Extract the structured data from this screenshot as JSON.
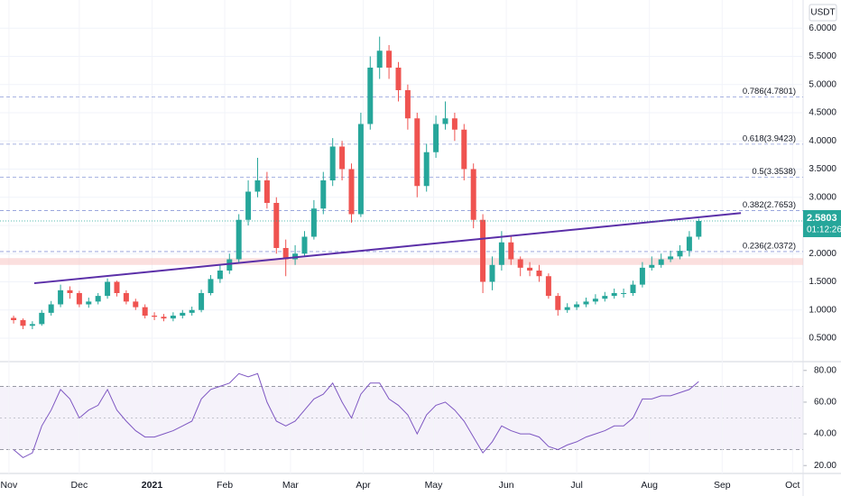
{
  "chart_data": [
    {
      "type": "candlestick",
      "currency": "USDT",
      "last_price": {
        "value": 2.5803,
        "label": "2.5803"
      },
      "countdown": "01:12:26",
      "up_color": "#26a69a",
      "down_color": "#ef5350",
      "price_line_color": "#26a69a",
      "xlim": [
        -3.8,
        338.5
      ],
      "ylim": [
        0.1,
        6.5
      ],
      "yticks": [
        {
          "value": 0.5,
          "label": "0.5000"
        },
        {
          "value": 1.0,
          "label": "1.0000"
        },
        {
          "value": 1.5,
          "label": "1.5000"
        },
        {
          "value": 2.0,
          "label": "2.0000"
        },
        {
          "value": 2.5,
          "label": "2.5000"
        },
        {
          "value": 3.0,
          "label": "3.0000"
        },
        {
          "value": 3.5,
          "label": "3.5000"
        },
        {
          "value": 4.0,
          "label": "4.0000"
        },
        {
          "value": 4.5,
          "label": "4.5000"
        },
        {
          "value": 5.0,
          "label": "5.0000"
        },
        {
          "value": 5.5,
          "label": "5.5000"
        },
        {
          "value": 6.0,
          "label": "6.0000"
        }
      ],
      "grid": true,
      "fib_levels": [
        {
          "value": 2.0372,
          "label": "0.236(2.0372)"
        },
        {
          "value": 2.7653,
          "label": "0.382(2.7653)"
        },
        {
          "value": 3.3538,
          "label": "0.5(3.3538)"
        },
        {
          "value": 3.9423,
          "label": "0.618(3.9423)"
        },
        {
          "value": 4.7801,
          "label": "0.786(4.7801)"
        }
      ],
      "fib_color": "#8c9ad8",
      "zone": [
        1.8,
        1.92
      ],
      "zone_color": "#f8c9c8",
      "trendline": {
        "x": [
          10.8,
          312
        ],
        "y": [
          1.475,
          2.72
        ],
        "color": "#5b2fa8"
      },
      "x": [
        2,
        6,
        10,
        14,
        18,
        22,
        26,
        30,
        34,
        38,
        42,
        46,
        50,
        54,
        58,
        62,
        66,
        70,
        74,
        78,
        82,
        86,
        90,
        94,
        98,
        102,
        106,
        110,
        114,
        118,
        122,
        126,
        130,
        134,
        138,
        142,
        146,
        150,
        154,
        158,
        162,
        166,
        170,
        174,
        178,
        182,
        186,
        190,
        194,
        198,
        202,
        206,
        210,
        214,
        218,
        222,
        226,
        230,
        234,
        238,
        242,
        246,
        250,
        254,
        258,
        262,
        266,
        270,
        274,
        278,
        282,
        286,
        290,
        294
      ],
      "open": [
        0.86,
        0.82,
        0.72,
        0.75,
        0.95,
        1.1,
        1.35,
        1.3,
        1.1,
        1.15,
        1.25,
        1.5,
        1.3,
        1.15,
        1.05,
        0.9,
        0.88,
        0.85,
        0.9,
        0.95,
        1.0,
        1.3,
        1.55,
        1.7,
        1.9,
        2.6,
        3.1,
        3.3,
        2.9,
        2.1,
        1.9,
        2.0,
        2.3,
        2.8,
        3.3,
        3.9,
        3.5,
        2.7,
        4.3,
        5.3,
        5.6,
        5.3,
        4.9,
        4.4,
        3.2,
        3.8,
        4.3,
        4.4,
        4.2,
        3.5,
        2.6,
        1.5,
        1.8,
        2.2,
        1.9,
        1.75,
        1.7,
        1.6,
        1.25,
        1.0,
        1.05,
        1.1,
        1.15,
        1.2,
        1.25,
        1.3,
        1.3,
        1.45,
        1.75,
        1.8,
        1.9,
        1.95,
        2.05,
        2.3
      ],
      "high": [
        0.9,
        0.85,
        0.8,
        1.0,
        1.16,
        1.45,
        1.42,
        1.34,
        1.22,
        1.3,
        1.56,
        1.52,
        1.35,
        1.2,
        1.1,
        0.96,
        0.93,
        0.96,
        1.0,
        1.06,
        1.36,
        1.62,
        1.8,
        2.0,
        2.7,
        3.3,
        3.7,
        3.45,
        3.0,
        2.25,
        2.15,
        2.4,
        2.95,
        3.45,
        4.05,
        4.0,
        3.6,
        4.5,
        5.5,
        5.85,
        5.7,
        5.4,
        5.0,
        4.5,
        3.95,
        4.45,
        4.7,
        4.5,
        4.3,
        3.6,
        2.7,
        1.95,
        2.4,
        2.3,
        1.95,
        1.85,
        1.8,
        1.65,
        1.3,
        1.12,
        1.15,
        1.22,
        1.28,
        1.32,
        1.38,
        1.38,
        1.52,
        1.85,
        1.95,
        2.0,
        2.05,
        2.15,
        2.4,
        2.62
      ],
      "low": [
        0.76,
        0.66,
        0.66,
        0.72,
        0.9,
        1.05,
        1.2,
        1.05,
        1.04,
        1.1,
        1.2,
        1.24,
        1.1,
        1.0,
        0.85,
        0.82,
        0.8,
        0.8,
        0.85,
        0.9,
        0.96,
        1.26,
        1.48,
        1.64,
        1.85,
        2.5,
        3.0,
        2.8,
        2.0,
        1.6,
        1.8,
        1.95,
        2.25,
        2.7,
        3.2,
        3.3,
        2.55,
        2.65,
        4.2,
        5.1,
        5.1,
        4.7,
        4.2,
        3.0,
        3.1,
        3.7,
        4.2,
        4.0,
        3.3,
        2.45,
        1.3,
        1.35,
        1.7,
        1.8,
        1.6,
        1.6,
        1.5,
        1.2,
        0.9,
        0.95,
        1.0,
        1.05,
        1.1,
        1.15,
        1.2,
        1.22,
        1.25,
        1.4,
        1.7,
        1.75,
        1.85,
        1.9,
        1.95,
        2.25
      ],
      "close": [
        0.82,
        0.72,
        0.75,
        0.95,
        1.1,
        1.35,
        1.3,
        1.1,
        1.15,
        1.25,
        1.5,
        1.3,
        1.15,
        1.05,
        0.9,
        0.88,
        0.85,
        0.9,
        0.95,
        1.0,
        1.3,
        1.55,
        1.7,
        1.9,
        2.6,
        3.1,
        3.3,
        2.9,
        2.1,
        1.9,
        2.0,
        2.3,
        2.8,
        3.3,
        3.9,
        3.5,
        2.7,
        4.3,
        5.3,
        5.6,
        5.3,
        4.9,
        4.4,
        3.2,
        3.8,
        4.3,
        4.4,
        4.2,
        3.5,
        2.6,
        1.5,
        1.8,
        2.2,
        1.9,
        1.75,
        1.7,
        1.6,
        1.25,
        1.0,
        1.05,
        1.1,
        1.15,
        1.2,
        1.25,
        1.3,
        1.3,
        1.45,
        1.75,
        1.8,
        1.9,
        1.95,
        2.05,
        2.3,
        2.5803
      ]
    },
    {
      "type": "line",
      "xlim": [
        -3.8,
        338.5
      ],
      "ylim": [
        15,
        85
      ],
      "yticks": [
        {
          "value": 20,
          "label": "20.00"
        },
        {
          "value": 40,
          "label": "40.00"
        },
        {
          "value": 60,
          "label": "60.00"
        },
        {
          "value": 80,
          "label": "80.00"
        }
      ],
      "band": [
        30,
        70
      ],
      "midline": 50,
      "band_color": "#7e57c2",
      "xticks": [
        {
          "value": 0,
          "label": "Nov"
        },
        {
          "value": 30,
          "label": "Dec"
        },
        {
          "value": 61,
          "label": "2021"
        },
        {
          "value": 92,
          "label": "Feb"
        },
        {
          "value": 120,
          "label": "Mar"
        },
        {
          "value": 151,
          "label": "Apr"
        },
        {
          "value": 181,
          "label": "May"
        },
        {
          "value": 212,
          "label": "Jun"
        },
        {
          "value": 242,
          "label": "Jul"
        },
        {
          "value": 273,
          "label": "Aug"
        },
        {
          "value": 304,
          "label": "Sep"
        },
        {
          "value": 334,
          "label": "Oct"
        }
      ],
      "x": [
        2,
        6,
        10,
        14,
        18,
        22,
        26,
        30,
        34,
        38,
        42,
        46,
        50,
        54,
        58,
        62,
        66,
        70,
        74,
        78,
        82,
        86,
        90,
        94,
        98,
        102,
        106,
        110,
        114,
        118,
        122,
        126,
        130,
        134,
        138,
        142,
        146,
        150,
        154,
        158,
        162,
        166,
        170,
        174,
        178,
        182,
        186,
        190,
        194,
        198,
        202,
        206,
        210,
        214,
        218,
        222,
        226,
        230,
        234,
        238,
        242,
        246,
        250,
        254,
        258,
        262,
        266,
        270,
        274,
        278,
        282,
        286,
        290,
        294
      ],
      "series": [
        {
          "color": "#7e57c2",
          "values": [
            30,
            25,
            28,
            45,
            55,
            68,
            62,
            50,
            55,
            58,
            68,
            55,
            48,
            42,
            38,
            38,
            40,
            42,
            45,
            48,
            62,
            68,
            70,
            72,
            78,
            76,
            78,
            60,
            48,
            45,
            48,
            55,
            62,
            65,
            72,
            60,
            50,
            65,
            72,
            72,
            62,
            58,
            52,
            40,
            52,
            58,
            60,
            55,
            48,
            38,
            28,
            35,
            45,
            42,
            40,
            40,
            38,
            32,
            30,
            33,
            35,
            38,
            40,
            42,
            45,
            45,
            50,
            62,
            62,
            64,
            64,
            66,
            68,
            73
          ]
        }
      ]
    }
  ]
}
